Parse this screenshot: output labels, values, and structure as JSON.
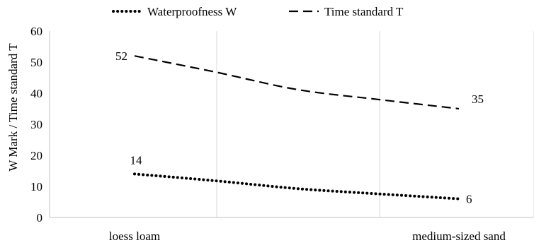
{
  "chart_data": {
    "type": "line",
    "x": [
      "loess loam",
      "medium-sized sand"
    ],
    "ylabel": "W Mark / Time standard T",
    "ylim": [
      0,
      60
    ],
    "yticks": [
      0,
      10,
      20,
      30,
      40,
      50,
      60
    ],
    "grid": "vertical",
    "legend": "top",
    "series": [
      {
        "name": "Waterproofness W",
        "line_style": "dotted",
        "color": "#000000",
        "values": [
          14,
          6
        ],
        "curve": [
          [
            0,
            14
          ],
          [
            0.25,
            11.8
          ],
          [
            0.5,
            9.3
          ],
          [
            0.75,
            7.6
          ],
          [
            1,
            6
          ]
        ],
        "labels": [
          "14",
          "6"
        ]
      },
      {
        "name": "Time standard T",
        "line_style": "dashed",
        "color": "#000000",
        "values": [
          52,
          35
        ],
        "curve": [
          [
            0,
            52
          ],
          [
            0.25,
            46.8
          ],
          [
            0.5,
            41.2
          ],
          [
            0.75,
            38.0
          ],
          [
            1,
            35
          ]
        ],
        "labels": [
          "52",
          "35"
        ]
      }
    ]
  }
}
